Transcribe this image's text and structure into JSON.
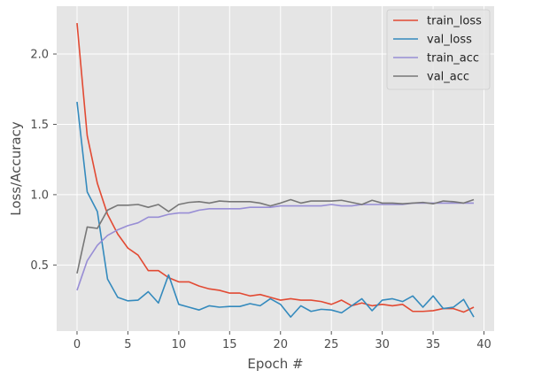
{
  "chart_data": {
    "type": "line",
    "title": "",
    "xlabel": "Epoch #",
    "ylabel": "Loss/Accuracy",
    "xlim": [
      -2,
      41
    ],
    "ylim": [
      0.03,
      2.34
    ],
    "xticks": [
      0,
      5,
      10,
      15,
      20,
      25,
      30,
      35,
      40
    ],
    "yticks": [
      0.5,
      1.0,
      1.5,
      2.0
    ],
    "ytick_labels": [
      "0.5",
      "1.0",
      "1.5",
      "2.0"
    ],
    "grid": true,
    "legend_position": "top-right",
    "x": [
      0,
      1,
      2,
      3,
      4,
      5,
      6,
      7,
      8,
      9,
      10,
      11,
      12,
      13,
      14,
      15,
      16,
      17,
      18,
      19,
      20,
      21,
      22,
      23,
      24,
      25,
      26,
      27,
      28,
      29,
      30,
      31,
      32,
      33,
      34,
      35,
      36,
      37,
      38,
      39
    ],
    "series": [
      {
        "name": "train_loss",
        "color": "#E24A33",
        "values": [
          2.22,
          1.42,
          1.08,
          0.86,
          0.72,
          0.62,
          0.57,
          0.46,
          0.46,
          0.41,
          0.38,
          0.38,
          0.35,
          0.33,
          0.32,
          0.3,
          0.3,
          0.28,
          0.29,
          0.27,
          0.25,
          0.26,
          0.25,
          0.25,
          0.24,
          0.22,
          0.25,
          0.21,
          0.23,
          0.21,
          0.22,
          0.21,
          0.22,
          0.17,
          0.17,
          0.175,
          0.19,
          0.19,
          0.165,
          0.2
        ]
      },
      {
        "name": "val_loss",
        "color": "#348ABD",
        "values": [
          1.66,
          1.02,
          0.88,
          0.4,
          0.27,
          0.245,
          0.25,
          0.31,
          0.23,
          0.43,
          0.22,
          0.2,
          0.18,
          0.21,
          0.2,
          0.205,
          0.205,
          0.225,
          0.21,
          0.26,
          0.22,
          0.13,
          0.21,
          0.17,
          0.185,
          0.18,
          0.16,
          0.21,
          0.26,
          0.175,
          0.25,
          0.26,
          0.24,
          0.28,
          0.2,
          0.28,
          0.19,
          0.2,
          0.255,
          0.13
        ]
      },
      {
        "name": "train_acc",
        "color": "#988ED5",
        "values": [
          0.32,
          0.53,
          0.64,
          0.71,
          0.75,
          0.78,
          0.8,
          0.84,
          0.84,
          0.86,
          0.87,
          0.87,
          0.89,
          0.9,
          0.9,
          0.9,
          0.9,
          0.91,
          0.91,
          0.91,
          0.92,
          0.92,
          0.92,
          0.92,
          0.92,
          0.93,
          0.92,
          0.92,
          0.93,
          0.93,
          0.93,
          0.93,
          0.93,
          0.94,
          0.94,
          0.94,
          0.94,
          0.94,
          0.94,
          0.94
        ]
      },
      {
        "name": "val_acc",
        "color": "#777777",
        "values": [
          0.44,
          0.77,
          0.76,
          0.89,
          0.925,
          0.925,
          0.93,
          0.91,
          0.93,
          0.88,
          0.93,
          0.945,
          0.95,
          0.94,
          0.955,
          0.95,
          0.95,
          0.95,
          0.94,
          0.92,
          0.94,
          0.965,
          0.94,
          0.955,
          0.955,
          0.955,
          0.96,
          0.945,
          0.93,
          0.96,
          0.94,
          0.94,
          0.935,
          0.94,
          0.945,
          0.935,
          0.955,
          0.95,
          0.94,
          0.965
        ]
      }
    ]
  }
}
